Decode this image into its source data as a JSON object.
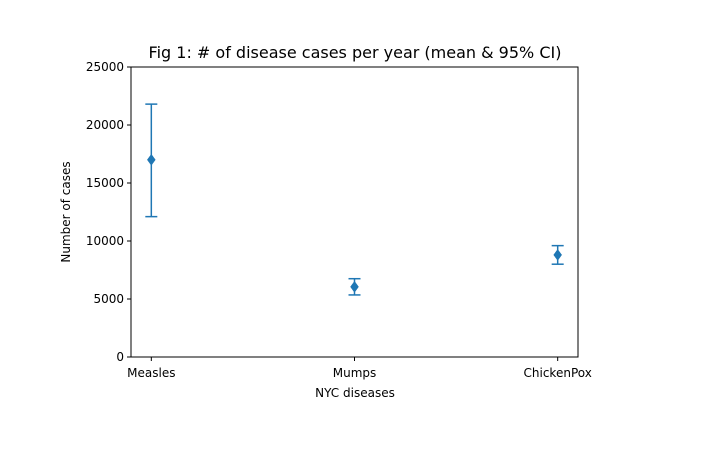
{
  "chart_data": {
    "type": "errorbar",
    "title": "Fig 1: # of disease cases per year (mean & 95% CI)",
    "xlabel": "NYC diseases",
    "ylabel": "Number of cases",
    "ylim": [
      0,
      25000
    ],
    "yticks": [
      "0",
      "5000",
      "10000",
      "15000",
      "20000",
      "25000"
    ],
    "categories": [
      "Measles",
      "Mumps",
      "ChickenPox"
    ],
    "series": [
      {
        "marker": "diamond",
        "color": "#1f77b4",
        "points": [
          {
            "category": "Measles",
            "mean": 17000,
            "lower": 12100,
            "upper": 21800
          },
          {
            "category": "Mumps",
            "mean": 6050,
            "lower": 5350,
            "upper": 6750
          },
          {
            "category": "ChickenPox",
            "mean": 8800,
            "lower": 8000,
            "upper": 9600
          }
        ]
      }
    ],
    "grid": false,
    "legend": "none"
  }
}
